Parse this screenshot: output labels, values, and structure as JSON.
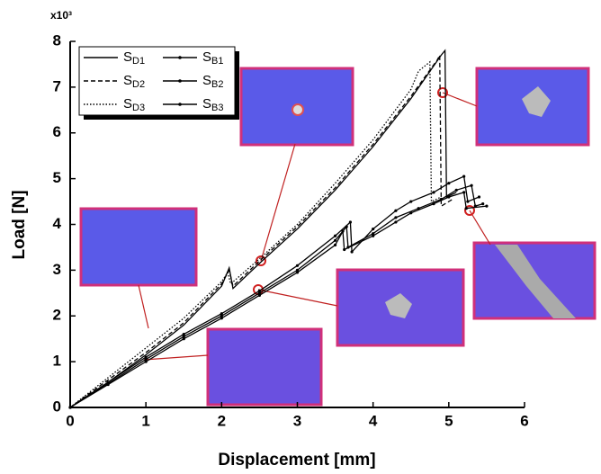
{
  "chart_data": {
    "type": "line",
    "x_label": "Displacement [mm]",
    "y_label": "Load [N]",
    "y_multiplier": "x10³",
    "xlim": [
      0,
      6
    ],
    "xticks": [
      0,
      1,
      2,
      3,
      4,
      5,
      6
    ],
    "ylim": [
      0,
      8
    ],
    "yticks": [
      0,
      1,
      2,
      3,
      4,
      5,
      6,
      7,
      8
    ],
    "series": [
      {
        "name": "SD1",
        "color": "#000000",
        "style": "solid",
        "marker": false,
        "x": [
          0,
          0.5,
          1,
          1.5,
          2,
          2.1,
          2.15,
          2.5,
          3,
          3.5,
          4,
          4.5,
          4.9,
          4.95,
          4.97,
          5.1
        ],
        "values": [
          0,
          0.55,
          1.15,
          1.8,
          2.65,
          3.05,
          2.6,
          3.15,
          3.9,
          4.75,
          5.7,
          6.75,
          7.7,
          7.8,
          4.6,
          4.7
        ]
      },
      {
        "name": "SD2",
        "color": "#000000",
        "style": "dashed",
        "marker": false,
        "x": [
          0,
          0.5,
          1,
          1.5,
          2,
          2.1,
          2.15,
          2.5,
          3,
          3.5,
          4,
          4.5,
          4.85,
          4.88,
          4.9,
          5.05
        ],
        "values": [
          0,
          0.6,
          1.2,
          1.85,
          2.7,
          3.0,
          2.65,
          3.2,
          3.95,
          4.8,
          5.75,
          6.8,
          7.6,
          7.7,
          4.4,
          4.55
        ]
      },
      {
        "name": "SD3",
        "color": "#000000",
        "style": "dotted",
        "marker": false,
        "x": [
          0,
          0.5,
          1,
          1.5,
          2,
          2.08,
          2.12,
          2.5,
          3,
          3.5,
          4,
          4.5,
          4.6,
          4.75,
          4.77,
          4.9
        ],
        "values": [
          0,
          0.65,
          1.3,
          1.95,
          2.75,
          2.95,
          2.7,
          3.25,
          4.0,
          4.9,
          5.85,
          6.95,
          7.35,
          7.55,
          4.5,
          4.6
        ]
      },
      {
        "name": "SB1",
        "color": "#000000",
        "style": "solid",
        "marker": true,
        "x": [
          0,
          0.5,
          1,
          1.5,
          2,
          2.5,
          3,
          3.5,
          3.7,
          3.72,
          4,
          4.3,
          4.5,
          4.8,
          5,
          5.2,
          5.25,
          5.4
        ],
        "values": [
          0,
          0.55,
          1.1,
          1.6,
          2.05,
          2.55,
          3.1,
          3.75,
          4.05,
          3.4,
          3.9,
          4.3,
          4.5,
          4.7,
          4.9,
          5.05,
          4.5,
          4.6
        ]
      },
      {
        "name": "SB2",
        "color": "#000000",
        "style": "solid",
        "marker": true,
        "x": [
          0,
          0.5,
          1,
          1.5,
          2,
          2.5,
          3,
          3.5,
          3.65,
          3.67,
          4,
          4.3,
          4.6,
          4.9,
          5.1,
          5.3,
          5.35,
          5.45
        ],
        "values": [
          0,
          0.52,
          1.05,
          1.55,
          2.0,
          2.5,
          3.0,
          3.65,
          3.95,
          3.5,
          3.8,
          4.15,
          4.35,
          4.55,
          4.75,
          4.85,
          4.4,
          4.45
        ]
      },
      {
        "name": "SB3",
        "color": "#000000",
        "style": "solid",
        "marker": true,
        "x": [
          0,
          0.5,
          1,
          1.5,
          2,
          2.5,
          3,
          3.5,
          3.6,
          3.62,
          4,
          4.3,
          4.5,
          4.8,
          5,
          5.2,
          5.23,
          5.5
        ],
        "values": [
          0,
          0.5,
          1.0,
          1.5,
          1.95,
          2.45,
          2.95,
          3.55,
          3.85,
          3.45,
          3.75,
          4.05,
          4.25,
          4.45,
          4.6,
          4.7,
          4.35,
          4.4
        ]
      }
    ]
  }
}
